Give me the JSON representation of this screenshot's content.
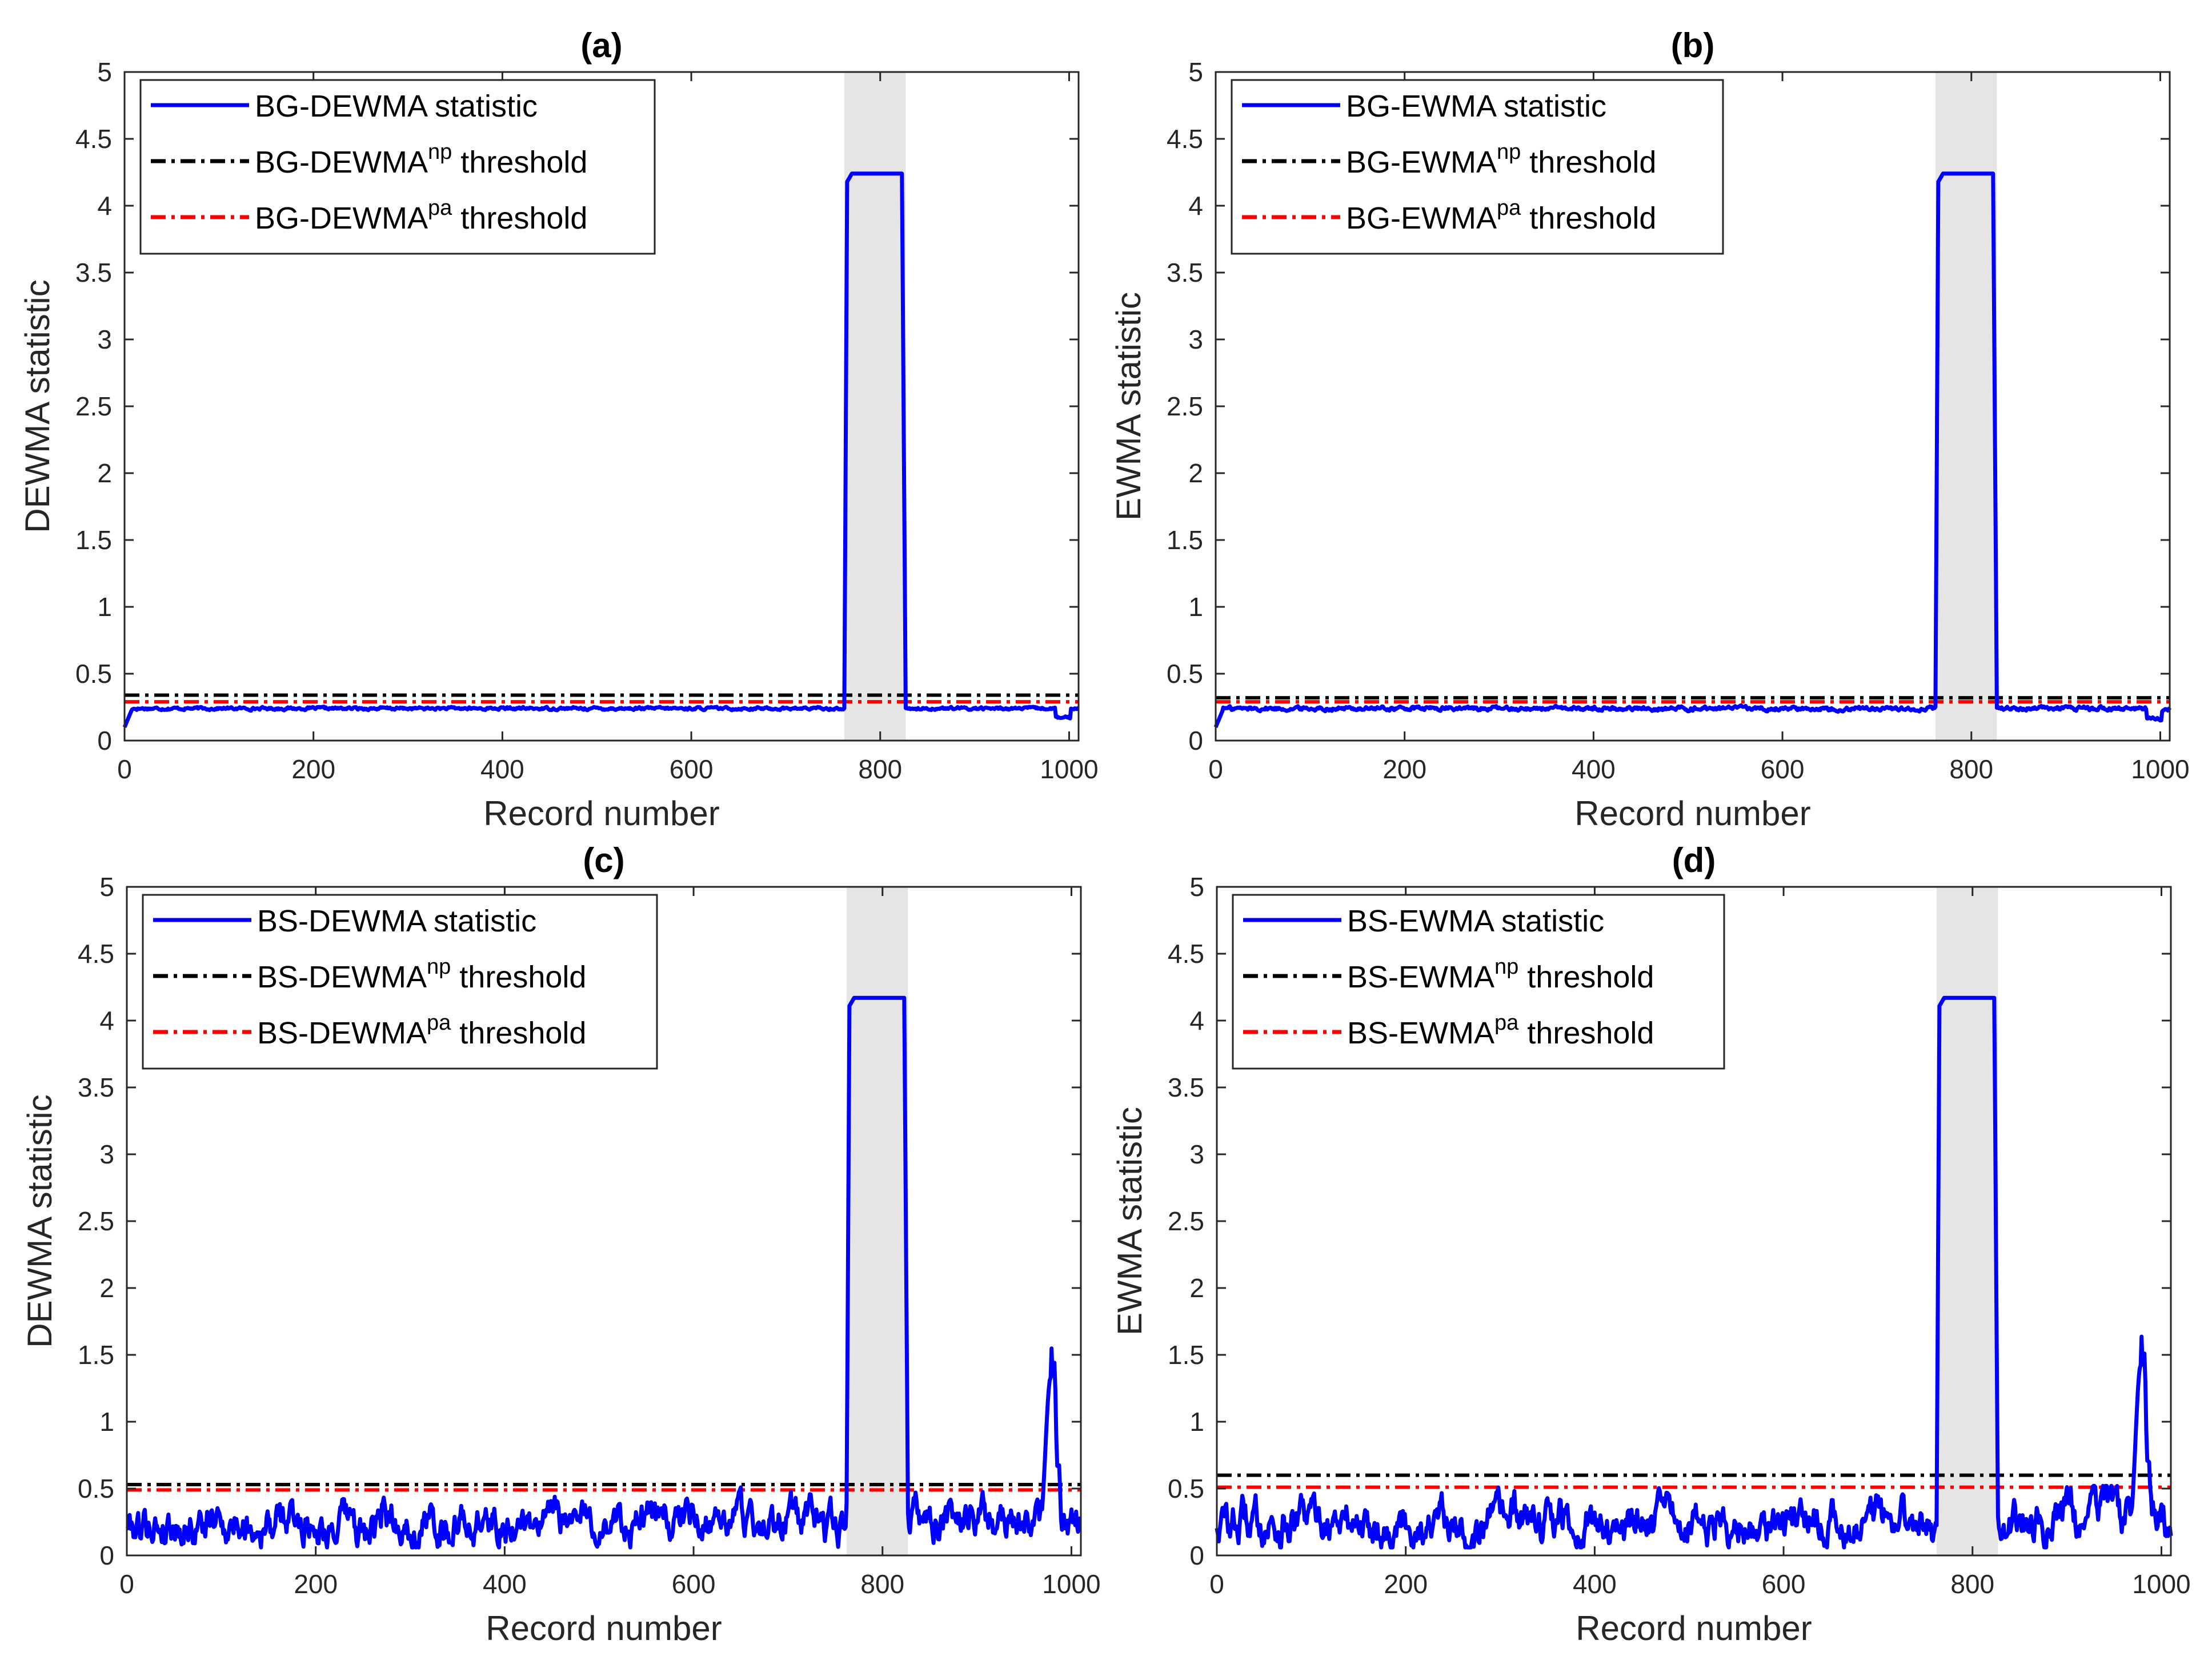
{
  "figure": {
    "description_type": "multi-panel control chart figure",
    "panel_count": 4
  },
  "chart_data": [
    {
      "type": "line",
      "panel": "a",
      "title": "(a)",
      "xlabel": "Record number",
      "ylabel": "DEWMA statistic",
      "xlim": [
        0,
        1010
      ],
      "ylim": [
        0,
        5
      ],
      "xticks": [
        "0",
        "200",
        "400",
        "600",
        "800",
        "1000"
      ],
      "yticks": [
        "0",
        "0.5",
        "1",
        "1.5",
        "2",
        "2.5",
        "3",
        "3.5",
        "4",
        "4.5",
        "5"
      ],
      "shaded_region": [
        762,
        827
      ],
      "base_level": 0.24,
      "noise_amplitude": 0.02,
      "anomaly_level": 4.24,
      "legend_position": "top-left",
      "series": [
        {
          "name": "BG-DEWMA statistic",
          "label_main": "BG-DEWMA",
          "label_sup": "",
          "label_rest": " statistic",
          "style": "solid",
          "color": "#0000ff"
        },
        {
          "name": "BG-DEWMA^np threshold",
          "label_main": "BG-DEWMA",
          "label_sup": "np",
          "label_rest": " threshold",
          "style": "dashdot",
          "color": "#000000",
          "value": 0.34
        },
        {
          "name": "BG-DEWMA^pa threshold",
          "label_main": "BG-DEWMA",
          "label_sup": "pa",
          "label_rest": " threshold",
          "style": "dashdot",
          "color": "#ff0000",
          "value": 0.29
        }
      ],
      "noisy": false
    },
    {
      "type": "line",
      "panel": "b",
      "title": "(b)",
      "xlabel": "Record number",
      "ylabel": "EWMA statistic",
      "xlim": [
        0,
        1010
      ],
      "ylim": [
        0,
        5
      ],
      "xticks": [
        "0",
        "200",
        "400",
        "600",
        "800",
        "1000"
      ],
      "yticks": [
        "0",
        "0.5",
        "1",
        "1.5",
        "2",
        "2.5",
        "3",
        "3.5",
        "4",
        "4.5",
        "5"
      ],
      "shaded_region": [
        762,
        827
      ],
      "base_level": 0.24,
      "noise_amplitude": 0.03,
      "anomaly_level": 4.24,
      "legend_position": "top-left",
      "series": [
        {
          "name": "BG-EWMA statistic",
          "label_main": "BG-EWMA",
          "label_sup": "",
          "label_rest": " statistic",
          "style": "solid",
          "color": "#0000ff"
        },
        {
          "name": "BG-EWMA^np threshold",
          "label_main": "BG-EWMA",
          "label_sup": "np",
          "label_rest": " threshold",
          "style": "dashdot",
          "color": "#000000",
          "value": 0.32
        },
        {
          "name": "BG-EWMA^pa threshold",
          "label_main": "BG-EWMA",
          "label_sup": "pa",
          "label_rest": " threshold",
          "style": "dashdot",
          "color": "#ff0000",
          "value": 0.29
        }
      ],
      "noisy": false
    },
    {
      "type": "line",
      "panel": "c",
      "title": "(c)",
      "xlabel": "Record number",
      "ylabel": "DEWMA statistic",
      "xlim": [
        0,
        1010
      ],
      "ylim": [
        0,
        5
      ],
      "xticks": [
        "0",
        "200",
        "400",
        "600",
        "800",
        "1000"
      ],
      "yticks": [
        "0",
        "0.5",
        "1",
        "1.5",
        "2",
        "2.5",
        "3",
        "3.5",
        "4",
        "4.5",
        "5"
      ],
      "shaded_region": [
        762,
        827
      ],
      "base_level": 0.25,
      "noise_amplitude": 0.15,
      "anomaly_level": 4.17,
      "late_spike": {
        "start": 965,
        "peak_x": 978,
        "peak": 1.33
      },
      "legend_position": "top-left",
      "series": [
        {
          "name": "BS-DEWMA statistic",
          "label_main": "BS-DEWMA",
          "label_sup": "",
          "label_rest": " statistic",
          "style": "solid",
          "color": "#0000ff"
        },
        {
          "name": "BS-DEWMA^np threshold",
          "label_main": "BS-DEWMA",
          "label_sup": "np",
          "label_rest": " threshold",
          "style": "dashdot",
          "color": "#000000",
          "value": 0.53
        },
        {
          "name": "BS-DEWMA^pa threshold",
          "label_main": "BS-DEWMA",
          "label_sup": "pa",
          "label_rest": " threshold",
          "style": "dashdot",
          "color": "#ff0000",
          "value": 0.49
        }
      ],
      "noisy": true
    },
    {
      "type": "line",
      "panel": "d",
      "title": "(d)",
      "xlabel": "Record number",
      "ylabel": "EWMA statistic",
      "xlim": [
        0,
        1010
      ],
      "ylim": [
        0,
        5
      ],
      "xticks": [
        "0",
        "200",
        "400",
        "600",
        "800",
        "1000"
      ],
      "yticks": [
        "0",
        "0.5",
        "1",
        "1.5",
        "2",
        "2.5",
        "3",
        "3.5",
        "4",
        "4.5",
        "5"
      ],
      "shaded_region": [
        762,
        827
      ],
      "base_level": 0.25,
      "noise_amplitude": 0.16,
      "anomaly_level": 4.17,
      "late_spike": {
        "start": 965,
        "peak_x": 978,
        "peak": 1.42
      },
      "legend_position": "top-left",
      "series": [
        {
          "name": "BS-EWMA statistic",
          "label_main": "BS-EWMA",
          "label_sup": "",
          "label_rest": " statistic",
          "style": "solid",
          "color": "#0000ff"
        },
        {
          "name": "BS-EWMA^np threshold",
          "label_main": "BS-EWMA",
          "label_sup": "np",
          "label_rest": " threshold",
          "style": "dashdot",
          "color": "#000000",
          "value": 0.6
        },
        {
          "name": "BS-EWMA^pa threshold",
          "label_main": "BS-EWMA",
          "label_sup": "pa",
          "label_rest": " threshold",
          "style": "dashdot",
          "color": "#ff0000",
          "value": 0.51
        }
      ],
      "noisy": true
    }
  ],
  "colors": {
    "statistic": "#0000ff",
    "np_threshold": "#000000",
    "pa_threshold": "#ff0000",
    "shade": "#e5e5e5",
    "axis": "#262626"
  }
}
